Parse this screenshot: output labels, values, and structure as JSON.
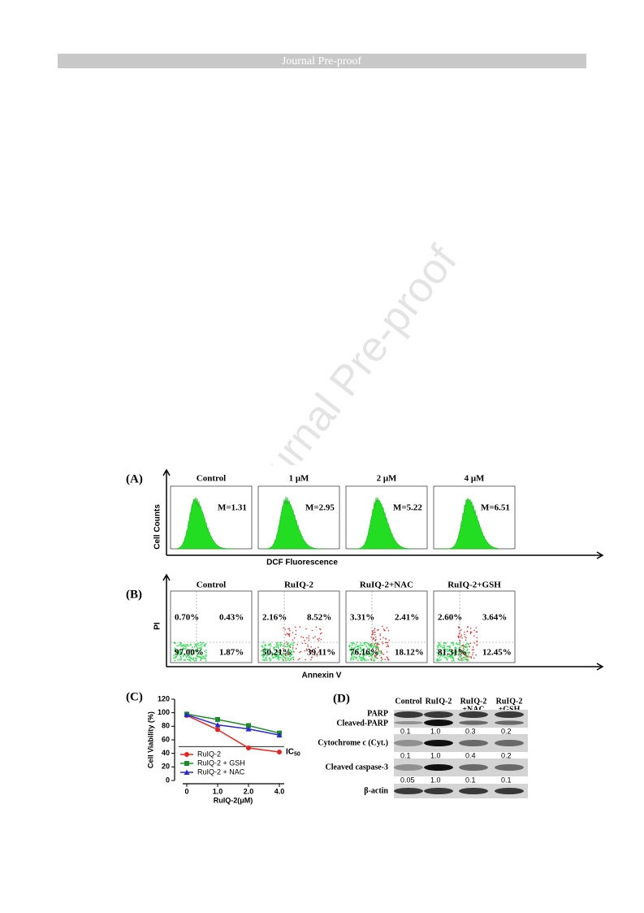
{
  "header": {
    "title": "Journal Pre-proof"
  },
  "watermark": "Journal Pre-proof",
  "figure": {
    "panel_a": {
      "label": "(A)",
      "y_label": "Cell Counts",
      "x_label": "DCF Fluorescence",
      "plots": [
        {
          "title": "Control",
          "annotation": "M=1.31"
        },
        {
          "title": "1 μM",
          "annotation": "M=2.95"
        },
        {
          "title": "2 μM",
          "annotation": "M=5.22"
        },
        {
          "title": "4 μM",
          "annotation": "M=6.51"
        }
      ]
    },
    "panel_b": {
      "label": "(B)",
      "y_label": "PI",
      "x_label": "Annexin V",
      "plots": [
        {
          "title": "Control",
          "quadrants": [
            "0.70%",
            "0.43%",
            "97.00%",
            "1.87%"
          ]
        },
        {
          "title": "RuIQ-2",
          "quadrants": [
            "2.16%",
            "8.52%",
            "50.21%",
            "39.11%"
          ]
        },
        {
          "title": "RuIQ-2+NAC",
          "quadrants": [
            "3.31%",
            "2.41%",
            "76.16%",
            "18.12%"
          ]
        },
        {
          "title": "RuIQ-2+GSH",
          "quadrants": [
            "2.60%",
            "3.64%",
            "81.31%",
            "12.45%"
          ]
        }
      ]
    },
    "panel_c": {
      "label": "(C)",
      "type": "line",
      "y_label": "Cell Viability (%)",
      "x_label": "RuIQ-2(μM)",
      "categories": [
        "0",
        "1.0",
        "2.0",
        "4.0"
      ],
      "ylim": [
        0,
        120
      ],
      "yticks": [
        0,
        20,
        40,
        60,
        80,
        100,
        120
      ],
      "reference_line": {
        "value": 50,
        "label": "IC",
        "label_subscript": "50"
      },
      "series": [
        {
          "name": "RuIQ-2",
          "color": "#e8231f",
          "marker": "circle",
          "values": [
            96,
            75,
            48,
            42
          ]
        },
        {
          "name": "RuIQ-2 + GSH",
          "color": "#1f8a2a",
          "marker": "square",
          "values": [
            98,
            90,
            81,
            70
          ]
        },
        {
          "name": "RuIQ-2 + NAC",
          "color": "#2a2ad0",
          "marker": "triangle",
          "values": [
            97,
            82,
            76,
            67
          ]
        }
      ]
    },
    "panel_d": {
      "label": "(D)",
      "columns": [
        [
          "Control"
        ],
        [
          "RuIQ-2"
        ],
        [
          "RuIQ-2",
          "+NAC"
        ],
        [
          "RuIQ-2",
          "+GSH"
        ]
      ],
      "rows": [
        {
          "labels": [
            "PARP",
            "Cleaved-PARP"
          ],
          "values": [
            "0.1",
            "1.0",
            "0.3",
            "0.2"
          ]
        },
        {
          "labels": [
            "Cytochrome c (Cyt.)"
          ],
          "values": [
            "0.1",
            "1.0",
            "0.4",
            "0.2"
          ]
        },
        {
          "labels": [
            "Cleaved caspase-3"
          ],
          "values": [
            "0.05",
            "1.0",
            "0.1",
            "0.1"
          ]
        },
        {
          "labels": [
            "β-actin"
          ]
        }
      ]
    }
  }
}
